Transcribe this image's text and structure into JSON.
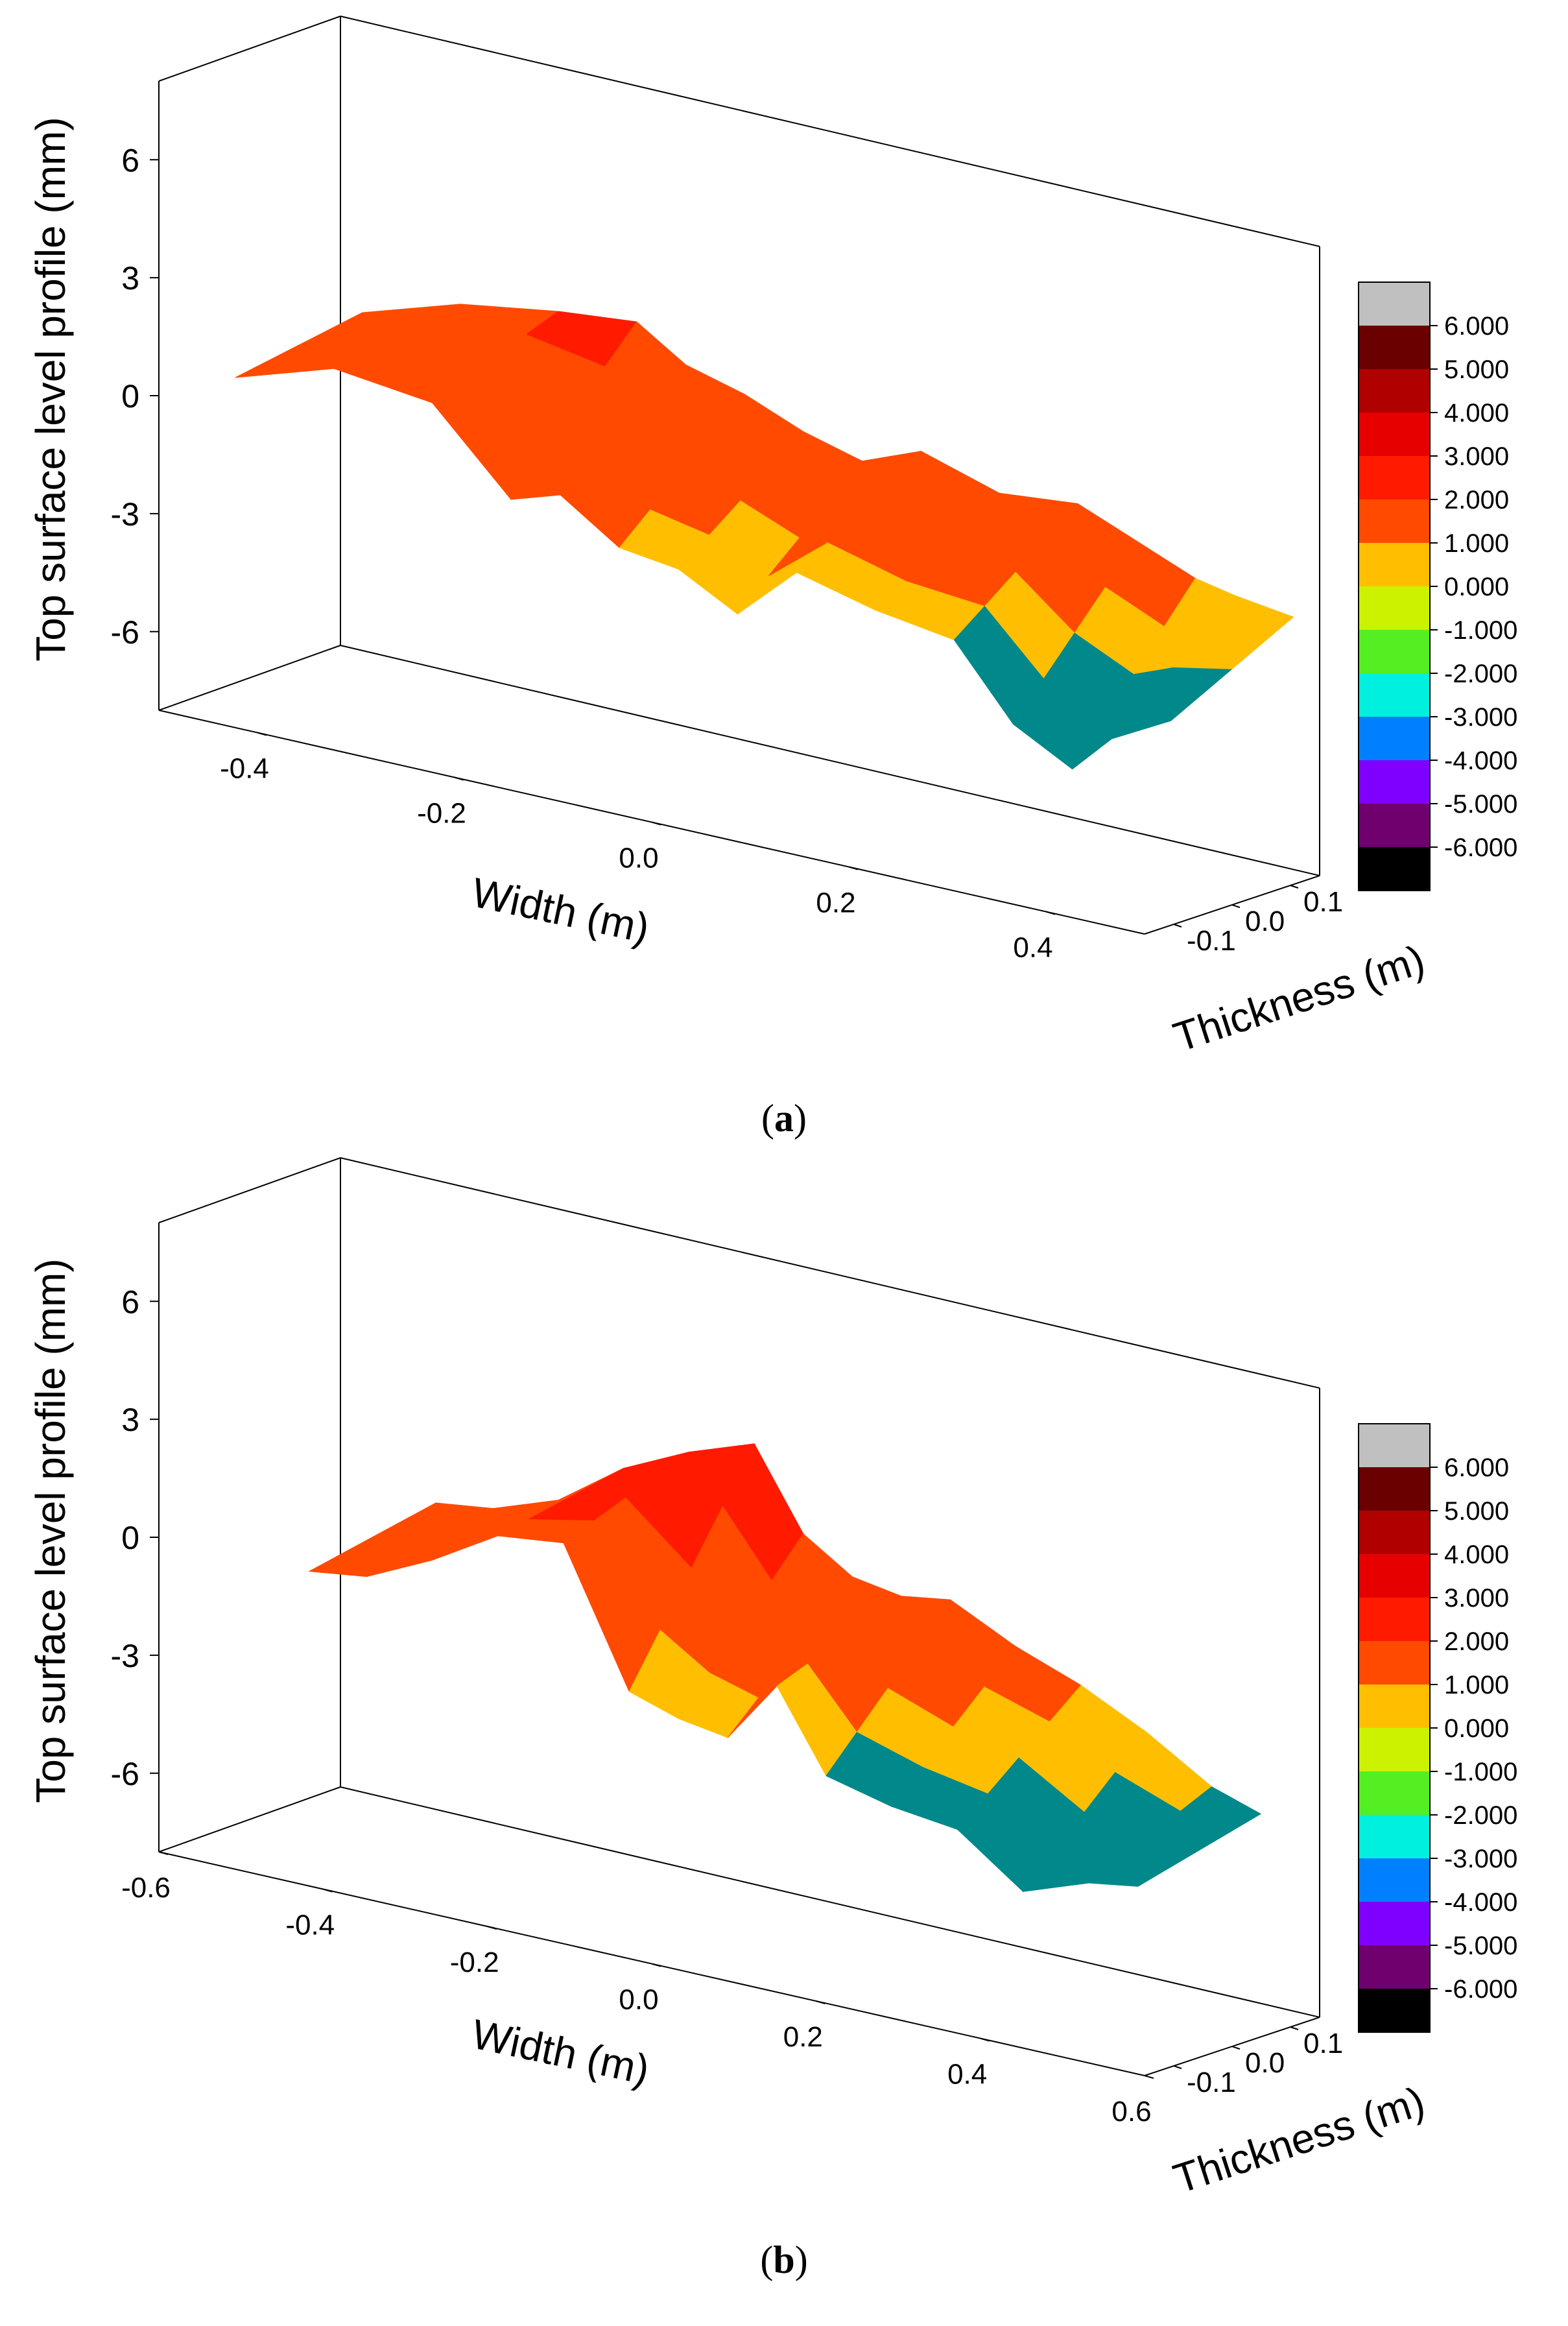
{
  "chart_data": [
    {
      "panel": "a",
      "type": "surface3d",
      "caption_letter": "a",
      "zlabel": "Top surface level profile (mm)",
      "xlabel": "Width (m)",
      "ylabel": "Thickness (m)",
      "z_ticks": [
        "6",
        "3",
        "0",
        "-3",
        "-6"
      ],
      "z_tick_values": [
        6,
        3,
        0,
        -3,
        -6
      ],
      "zlim": [
        -8,
        8
      ],
      "x_ticks": [
        "-0.4",
        "-0.2",
        "0.0",
        "0.2",
        "0.4"
      ],
      "x_tick_values": [
        -0.4,
        -0.2,
        0.0,
        0.2,
        0.4
      ],
      "xlim": [
        -0.5,
        0.5
      ],
      "y_ticks": [
        "-0.1",
        "0.0",
        "0.1"
      ],
      "y_tick_values": [
        -0.1,
        0.0,
        0.1
      ],
      "ylim": [
        -0.15,
        0.15
      ],
      "profile_front": [
        {
          "x": -0.45,
          "z": 0.5
        },
        {
          "x": -0.35,
          "z": 1.3
        },
        {
          "x": -0.25,
          "z": 1.0
        },
        {
          "x": -0.17,
          "z": -1.0
        },
        {
          "x": -0.12,
          "z": -0.6
        },
        {
          "x": -0.06,
          "z": -1.6
        },
        {
          "x": 0.0,
          "z": -1.8
        },
        {
          "x": 0.06,
          "z": -2.6
        },
        {
          "x": 0.12,
          "z": -1.2
        },
        {
          "x": 0.2,
          "z": -1.7
        },
        {
          "x": 0.28,
          "z": -2.0
        },
        {
          "x": 0.34,
          "z": -3.8
        },
        {
          "x": 0.4,
          "z": -4.6
        },
        {
          "x": 0.44,
          "z": -3.6
        },
        {
          "x": 0.5,
          "z": -2.8
        }
      ],
      "profile_back": [
        {
          "x": -0.45,
          "z": 1.0
        },
        {
          "x": -0.35,
          "z": 1.8
        },
        {
          "x": -0.25,
          "z": 2.2
        },
        {
          "x": -0.17,
          "z": 2.4
        },
        {
          "x": -0.12,
          "z": 1.6
        },
        {
          "x": -0.06,
          "z": 1.2
        },
        {
          "x": 0.0,
          "z": 0.6
        },
        {
          "x": 0.06,
          "z": 0.2
        },
        {
          "x": 0.12,
          "z": 0.8
        },
        {
          "x": 0.2,
          "z": 0.2
        },
        {
          "x": 0.28,
          "z": 0.4
        },
        {
          "x": 0.34,
          "z": -0.2
        },
        {
          "x": 0.4,
          "z": -0.8
        },
        {
          "x": 0.44,
          "z": -1.0
        },
        {
          "x": 0.5,
          "z": -1.2
        }
      ]
    },
    {
      "panel": "b",
      "type": "surface3d",
      "caption_letter": "b",
      "zlabel": "Top surface level profile (mm)",
      "xlabel": "Width (m)",
      "ylabel": "Thickness (m)",
      "z_ticks": [
        "6",
        "3",
        "0",
        "-3",
        "-6"
      ],
      "z_tick_values": [
        6,
        3,
        0,
        -3,
        -6
      ],
      "zlim": [
        -8,
        8
      ],
      "x_ticks": [
        "-0.6",
        "-0.4",
        "-0.2",
        "0.0",
        "0.2",
        "0.4",
        "0.6"
      ],
      "x_tick_values": [
        -0.6,
        -0.4,
        -0.2,
        0.0,
        0.2,
        0.4,
        0.6
      ],
      "xlim": [
        -0.6,
        0.6
      ],
      "y_ticks": [
        "-0.1",
        "0.0",
        "0.1"
      ],
      "y_tick_values": [
        -0.1,
        0.0,
        0.1
      ],
      "ylim": [
        -0.15,
        0.15
      ],
      "profile_front": [
        {
          "x": -0.45,
          "z": -0.4
        },
        {
          "x": -0.38,
          "z": -0.2
        },
        {
          "x": -0.3,
          "z": 0.6
        },
        {
          "x": -0.22,
          "z": 1.6
        },
        {
          "x": -0.14,
          "z": 1.8
        },
        {
          "x": -0.06,
          "z": -1.6
        },
        {
          "x": 0.0,
          "z": -2.0
        },
        {
          "x": 0.06,
          "z": -2.2
        },
        {
          "x": 0.12,
          "z": -0.6
        },
        {
          "x": 0.18,
          "z": -2.6
        },
        {
          "x": 0.26,
          "z": -3.0
        },
        {
          "x": 0.34,
          "z": -3.2
        },
        {
          "x": 0.42,
          "z": -4.4
        },
        {
          "x": 0.5,
          "z": -3.8
        },
        {
          "x": 0.56,
          "z": -3.6
        }
      ],
      "profile_back": [
        {
          "x": -0.45,
          "z": 0.2
        },
        {
          "x": -0.38,
          "z": 0.4
        },
        {
          "x": -0.3,
          "z": 1.0
        },
        {
          "x": -0.22,
          "z": 2.2
        },
        {
          "x": -0.14,
          "z": 3.0
        },
        {
          "x": -0.06,
          "z": 3.6
        },
        {
          "x": 0.0,
          "z": 1.6
        },
        {
          "x": 0.06,
          "z": 0.8
        },
        {
          "x": 0.12,
          "z": 0.6
        },
        {
          "x": 0.18,
          "z": 0.8
        },
        {
          "x": 0.26,
          "z": 0.0
        },
        {
          "x": 0.34,
          "z": -0.6
        },
        {
          "x": 0.42,
          "z": -1.4
        },
        {
          "x": 0.5,
          "z": -2.4
        },
        {
          "x": 0.56,
          "z": -2.8
        }
      ]
    }
  ],
  "legend": {
    "labels": [
      "6.000",
      "5.000",
      "4.000",
      "3.000",
      "2.000",
      "1.000",
      "0.000",
      "-1.000",
      "-2.000",
      "-3.000",
      "-4.000",
      "-5.000",
      "-6.000"
    ],
    "levels": [
      6,
      5,
      4,
      3,
      2,
      1,
      0,
      -1,
      -2,
      -3,
      -4,
      -5,
      -6
    ],
    "colors": [
      "#c0c0c0",
      "#6b0000",
      "#b00000",
      "#e60000",
      "#ff1a00",
      "#ff4a00",
      "#ffbf00",
      "#ccf200",
      "#55ee22",
      "#00f0e0",
      "#0080ff",
      "#8000ff",
      "#70006e",
      "#000000"
    ]
  },
  "surface_colors": {
    "teal": "#00888a",
    "yellow": "#ffbf00",
    "orange": "#ff4a00",
    "red": "#ff1a00",
    "yellowgreen": "#ccf200"
  }
}
